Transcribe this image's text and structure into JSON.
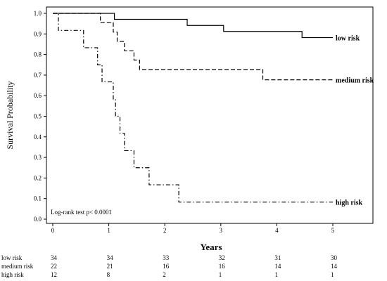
{
  "chart_data": {
    "type": "line",
    "subtype": "kaplan-meier step",
    "title": "",
    "xlabel": "Years",
    "ylabel": "Survival Probability",
    "xlim": [
      0,
      5.6
    ],
    "ylim": [
      0,
      1.0
    ],
    "xticks": [
      "0",
      "1",
      "2",
      "3",
      "4",
      "5"
    ],
    "yticks": [
      "0.0",
      "0.1",
      "0.2",
      "0.3",
      "0.4",
      "0.5",
      "0.6",
      "0.7",
      "0.8",
      "0.9",
      "1.0"
    ],
    "grid": false,
    "annotation": "Log-rank test p< 0.0001",
    "series": [
      {
        "name": "low risk",
        "line_style": "solid",
        "steps": [
          [
            0,
            1.0
          ],
          [
            1.1,
            0.971
          ],
          [
            2.4,
            0.941
          ],
          [
            3.05,
            0.912
          ],
          [
            4.45,
            0.882
          ],
          [
            5.0,
            0.882
          ]
        ]
      },
      {
        "name": "medium risk",
        "line_style": "dashed",
        "steps": [
          [
            0,
            1.0
          ],
          [
            0.85,
            0.955
          ],
          [
            1.08,
            0.909
          ],
          [
            1.15,
            0.864
          ],
          [
            1.28,
            0.818
          ],
          [
            1.45,
            0.773
          ],
          [
            1.55,
            0.727
          ],
          [
            3.75,
            0.677
          ],
          [
            5.0,
            0.677
          ]
        ]
      },
      {
        "name": "high risk",
        "line_style": "dash-dot",
        "steps": [
          [
            0,
            1.0
          ],
          [
            0.1,
            0.917
          ],
          [
            0.55,
            0.833
          ],
          [
            0.8,
            0.75
          ],
          [
            0.88,
            0.667
          ],
          [
            1.08,
            0.583
          ],
          [
            1.12,
            0.5
          ],
          [
            1.2,
            0.417
          ],
          [
            1.28,
            0.333
          ],
          [
            1.45,
            0.25
          ],
          [
            1.72,
            0.167
          ],
          [
            2.25,
            0.083
          ],
          [
            5.0,
            0.083
          ]
        ]
      }
    ],
    "risk_table": {
      "rows": [
        {
          "label": "low risk",
          "values": [
            "34",
            "34",
            "33",
            "32",
            "31",
            "30"
          ]
        },
        {
          "label": "medium risk",
          "values": [
            "22",
            "21",
            "16",
            "16",
            "14",
            "14"
          ]
        },
        {
          "label": "high risk",
          "values": [
            "12",
            "8",
            "2",
            "1",
            "1",
            "1"
          ]
        }
      ]
    }
  }
}
